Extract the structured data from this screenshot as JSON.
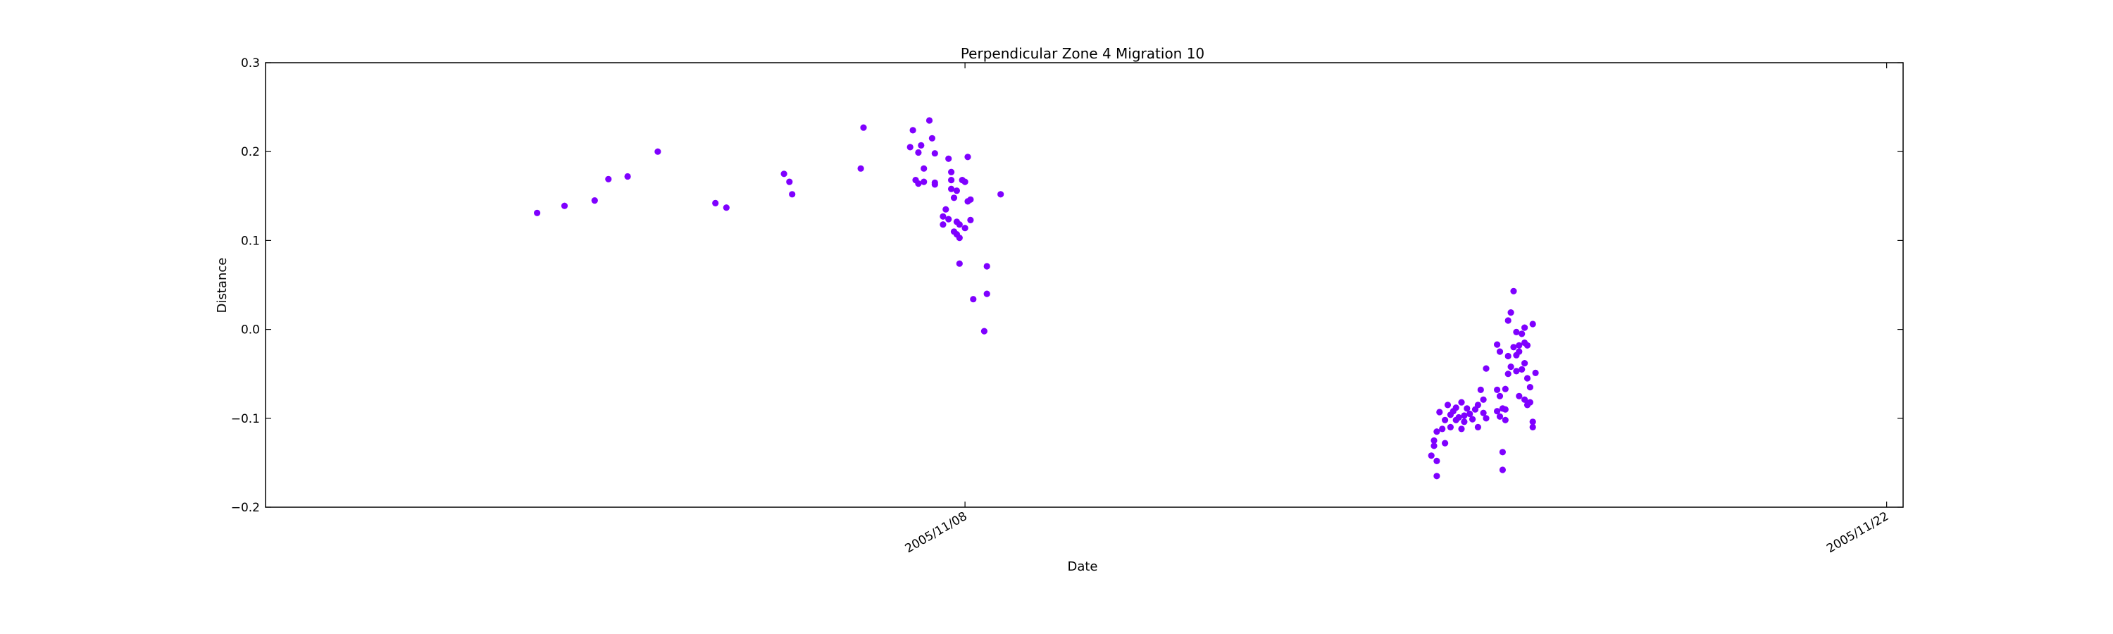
{
  "chart_data": {
    "type": "scatter",
    "title": "Perpendicular Zone 4 Migration 10",
    "xlabel": "Date",
    "ylabel": "Distance",
    "xlim": [
      "2005-10-28T09:00",
      "2005-11-22T06:00"
    ],
    "ylim": [
      -0.2,
      0.3
    ],
    "y_ticks": [
      -0.2,
      -0.1,
      0.0,
      0.1,
      0.2,
      0.3
    ],
    "y_tick_labels": [
      "−0.2",
      "−0.1",
      "0.0",
      "0.1",
      "0.2",
      "0.3"
    ],
    "x_ticks": [
      "2005-11-08T00:00",
      "2005-11-22T00:00"
    ],
    "x_tick_labels": [
      "2005/11/08",
      "2005/11/22"
    ],
    "grid": false,
    "marker_color": "#7f00ff",
    "series": [
      {
        "points": [
          [
            "2005-11-01T12:00",
            0.131
          ],
          [
            "2005-11-01T22:00",
            0.139
          ],
          [
            "2005-11-02T09:00",
            0.145
          ],
          [
            "2005-11-02T14:00",
            0.169
          ],
          [
            "2005-11-02T21:00",
            0.172
          ],
          [
            "2005-11-03T08:00",
            0.2
          ],
          [
            "2005-11-04T05:00",
            0.142
          ],
          [
            "2005-11-04T09:00",
            0.137
          ],
          [
            "2005-11-05T06:00",
            0.175
          ],
          [
            "2005-11-05T08:00",
            0.166
          ],
          [
            "2005-11-05T09:00",
            0.152
          ],
          [
            "2005-11-06T10:00",
            0.181
          ],
          [
            "2005-11-06T11:00",
            0.227
          ],
          [
            "2005-11-07T04:00",
            0.205
          ],
          [
            "2005-11-07T05:00",
            0.224
          ],
          [
            "2005-11-07T06:00",
            0.168
          ],
          [
            "2005-11-07T07:00",
            0.164
          ],
          [
            "2005-11-07T07:00",
            0.199
          ],
          [
            "2005-11-07T08:00",
            0.207
          ],
          [
            "2005-11-07T09:00",
            0.166
          ],
          [
            "2005-11-07T09:00",
            0.181
          ],
          [
            "2005-11-07T11:00",
            0.235
          ],
          [
            "2005-11-07T12:00",
            0.215
          ],
          [
            "2005-11-07T13:00",
            0.198
          ],
          [
            "2005-11-07T13:00",
            0.165
          ],
          [
            "2005-11-07T13:00",
            0.163
          ],
          [
            "2005-11-07T16:00",
            0.127
          ],
          [
            "2005-11-07T16:00",
            0.118
          ],
          [
            "2005-11-07T17:00",
            0.135
          ],
          [
            "2005-11-07T18:00",
            0.124
          ],
          [
            "2005-11-07T18:00",
            0.192
          ],
          [
            "2005-11-07T19:00",
            0.177
          ],
          [
            "2005-11-07T19:00",
            0.168
          ],
          [
            "2005-11-07T19:00",
            0.158
          ],
          [
            "2005-11-07T20:00",
            0.148
          ],
          [
            "2005-11-07T20:00",
            0.11
          ],
          [
            "2005-11-07T21:00",
            0.156
          ],
          [
            "2005-11-07T21:00",
            0.121
          ],
          [
            "2005-11-07T21:00",
            0.107
          ],
          [
            "2005-11-07T22:00",
            0.074
          ],
          [
            "2005-11-07T22:00",
            0.103
          ],
          [
            "2005-11-07T22:00",
            0.118
          ],
          [
            "2005-11-07T23:00",
            0.168
          ],
          [
            "2005-11-08T00:00",
            0.166
          ],
          [
            "2005-11-08T00:00",
            0.114
          ],
          [
            "2005-11-08T01:00",
            0.194
          ],
          [
            "2005-11-08T01:00",
            0.144
          ],
          [
            "2005-11-08T02:00",
            0.146
          ],
          [
            "2005-11-08T02:00",
            0.123
          ],
          [
            "2005-11-08T03:00",
            0.034
          ],
          [
            "2005-11-08T07:00",
            -0.002
          ],
          [
            "2005-11-08T08:00",
            0.04
          ],
          [
            "2005-11-08T08:00",
            0.071
          ],
          [
            "2005-11-08T13:00",
            0.152
          ],
          [
            "2005-11-15T02:00",
            -0.142
          ],
          [
            "2005-11-15T03:00",
            -0.131
          ],
          [
            "2005-11-15T03:00",
            -0.125
          ],
          [
            "2005-11-15T04:00",
            -0.165
          ],
          [
            "2005-11-15T04:00",
            -0.148
          ],
          [
            "2005-11-15T04:00",
            -0.115
          ],
          [
            "2005-11-15T05:00",
            -0.093
          ],
          [
            "2005-11-15T06:00",
            -0.112
          ],
          [
            "2005-11-15T07:00",
            -0.128
          ],
          [
            "2005-11-15T07:00",
            -0.102
          ],
          [
            "2005-11-15T08:00",
            -0.085
          ],
          [
            "2005-11-15T09:00",
            -0.096
          ],
          [
            "2005-11-15T09:00",
            -0.11
          ],
          [
            "2005-11-15T10:00",
            -0.092
          ],
          [
            "2005-11-15T11:00",
            -0.102
          ],
          [
            "2005-11-15T11:00",
            -0.088
          ],
          [
            "2005-11-15T12:00",
            -0.099
          ],
          [
            "2005-11-15T13:00",
            -0.112
          ],
          [
            "2005-11-15T13:00",
            -0.082
          ],
          [
            "2005-11-15T14:00",
            -0.097
          ],
          [
            "2005-11-15T14:00",
            -0.104
          ],
          [
            "2005-11-15T15:00",
            -0.089
          ],
          [
            "2005-11-15T16:00",
            -0.095
          ],
          [
            "2005-11-15T17:00",
            -0.101
          ],
          [
            "2005-11-15T18:00",
            -0.09
          ],
          [
            "2005-11-15T19:00",
            -0.11
          ],
          [
            "2005-11-15T19:00",
            -0.085
          ],
          [
            "2005-11-15T20:00",
            -0.068
          ],
          [
            "2005-11-15T21:00",
            -0.079
          ],
          [
            "2005-11-15T21:00",
            -0.094
          ],
          [
            "2005-11-15T22:00",
            -0.044
          ],
          [
            "2005-11-15T22:00",
            -0.1
          ],
          [
            "2005-11-16T02:00",
            -0.017
          ],
          [
            "2005-11-16T02:00",
            -0.068
          ],
          [
            "2005-11-16T02:00",
            -0.092
          ],
          [
            "2005-11-16T03:00",
            -0.075
          ],
          [
            "2005-11-16T03:00",
            -0.098
          ],
          [
            "2005-11-16T03:00",
            -0.025
          ],
          [
            "2005-11-16T04:00",
            -0.138
          ],
          [
            "2005-11-16T04:00",
            -0.089
          ],
          [
            "2005-11-16T04:00",
            -0.158
          ],
          [
            "2005-11-16T05:00",
            -0.067
          ],
          [
            "2005-11-16T05:00",
            -0.102
          ],
          [
            "2005-11-16T05:00",
            -0.09
          ],
          [
            "2005-11-16T06:00",
            -0.05
          ],
          [
            "2005-11-16T06:00",
            0.01
          ],
          [
            "2005-11-16T06:00",
            -0.03
          ],
          [
            "2005-11-16T07:00",
            0.019
          ],
          [
            "2005-11-16T07:00",
            -0.042
          ],
          [
            "2005-11-16T08:00",
            -0.02
          ],
          [
            "2005-11-16T08:00",
            0.043
          ],
          [
            "2005-11-16T09:00",
            -0.029
          ],
          [
            "2005-11-16T09:00",
            -0.047
          ],
          [
            "2005-11-16T09:00",
            -0.003
          ],
          [
            "2005-11-16T10:00",
            -0.018
          ],
          [
            "2005-11-16T10:00",
            -0.025
          ],
          [
            "2005-11-16T10:00",
            -0.075
          ],
          [
            "2005-11-16T11:00",
            -0.005
          ],
          [
            "2005-11-16T11:00",
            -0.045
          ],
          [
            "2005-11-16T12:00",
            -0.079
          ],
          [
            "2005-11-16T12:00",
            -0.015
          ],
          [
            "2005-11-16T12:00",
            0.002
          ],
          [
            "2005-11-16T12:00",
            -0.038
          ],
          [
            "2005-11-16T13:00",
            -0.055
          ],
          [
            "2005-11-16T13:00",
            -0.085
          ],
          [
            "2005-11-16T13:00",
            -0.018
          ],
          [
            "2005-11-16T14:00",
            -0.065
          ],
          [
            "2005-11-16T14:00",
            -0.082
          ],
          [
            "2005-11-16T15:00",
            0.006
          ],
          [
            "2005-11-16T15:00",
            -0.104
          ],
          [
            "2005-11-16T15:00",
            -0.11
          ],
          [
            "2005-11-16T16:00",
            -0.049
          ]
        ]
      }
    ]
  }
}
